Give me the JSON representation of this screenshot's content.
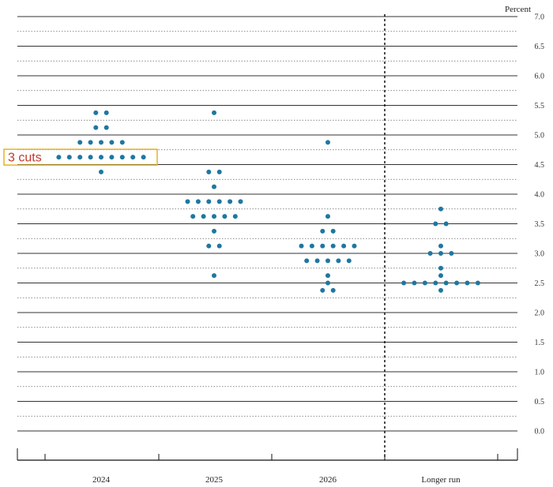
{
  "chart_data": {
    "type": "scatter",
    "ylabel": "Percent",
    "ylim": [
      0,
      7
    ],
    "yticks": [
      "0.0",
      "0.5",
      "1.0",
      "1.5",
      "2.0",
      "2.5",
      "3.0",
      "3.5",
      "4.0",
      "4.5",
      "5.0",
      "5.5",
      "6.0",
      "6.5",
      "7.0"
    ],
    "categories": [
      "2024",
      "2025",
      "2026",
      "Longer run"
    ],
    "grid": true,
    "dot_color": "#1f77a0",
    "groups": [
      {
        "category": "2024",
        "rows": [
          {
            "rate": 5.375,
            "count": 2
          },
          {
            "rate": 5.125,
            "count": 2
          },
          {
            "rate": 4.875,
            "count": 5
          },
          {
            "rate": 4.625,
            "count": 9
          },
          {
            "rate": 4.375,
            "count": 1
          }
        ]
      },
      {
        "category": "2025",
        "rows": [
          {
            "rate": 5.375,
            "count": 1
          },
          {
            "rate": 4.375,
            "count": 2
          },
          {
            "rate": 4.125,
            "count": 1
          },
          {
            "rate": 3.875,
            "count": 6
          },
          {
            "rate": 3.625,
            "count": 5
          },
          {
            "rate": 3.375,
            "count": 1
          },
          {
            "rate": 3.125,
            "count": 2
          },
          {
            "rate": 2.625,
            "count": 1
          }
        ]
      },
      {
        "category": "2026",
        "rows": [
          {
            "rate": 4.875,
            "count": 1
          },
          {
            "rate": 3.625,
            "count": 1
          },
          {
            "rate": 3.375,
            "count": 2
          },
          {
            "rate": 3.125,
            "count": 6
          },
          {
            "rate": 2.875,
            "count": 5
          },
          {
            "rate": 2.625,
            "count": 1
          },
          {
            "rate": 2.5,
            "count": 1
          },
          {
            "rate": 2.375,
            "count": 2
          }
        ]
      },
      {
        "category": "Longer run",
        "rows": [
          {
            "rate": 3.75,
            "count": 1
          },
          {
            "rate": 3.5,
            "count": 2
          },
          {
            "rate": 3.125,
            "count": 1
          },
          {
            "rate": 3.0,
            "count": 3
          },
          {
            "rate": 2.75,
            "count": 1
          },
          {
            "rate": 2.625,
            "count": 1
          },
          {
            "rate": 2.5,
            "count": 8
          },
          {
            "rate": 2.375,
            "count": 1
          }
        ]
      }
    ],
    "annotation": {
      "text": "3 cuts",
      "rate": 4.625,
      "category": "2024",
      "box_color": "#e6b422",
      "text_color": "#c0392b"
    }
  }
}
